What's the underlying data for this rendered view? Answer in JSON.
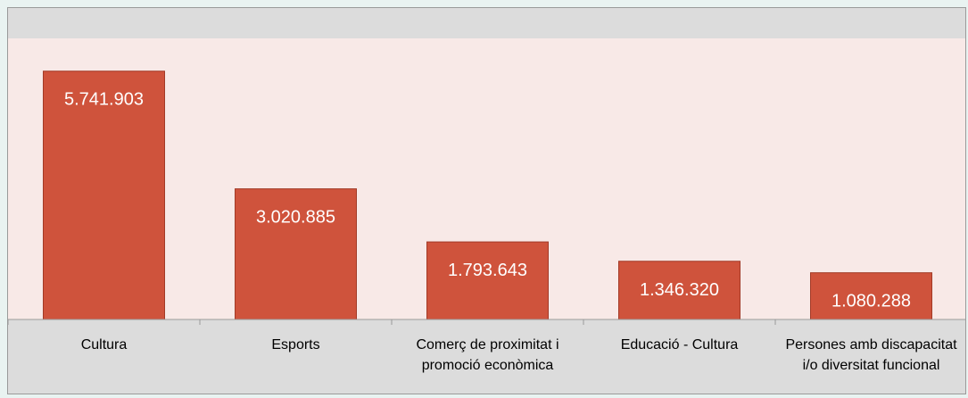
{
  "chart_data": {
    "type": "bar",
    "categories": [
      [
        "Cultura"
      ],
      [
        "Esports"
      ],
      [
        "Comerç de proximitat i",
        "promoció econòmica"
      ],
      [
        "Educació - Cultura"
      ],
      [
        "Persones amb discapacitat",
        "i/o diversitat funcional"
      ]
    ],
    "values": [
      5741903,
      3020885,
      1793643,
      1346320,
      1080288
    ],
    "value_labels": [
      "5.741.903",
      "3.020.885",
      "1.793.643",
      "1.346.320",
      "1.080.288"
    ],
    "title": "",
    "xlabel": "",
    "ylabel": "",
    "ylim": [
      0,
      6500000
    ],
    "grid": false,
    "legend": "none",
    "colors": {
      "bar": "#cf533c",
      "bar_border": "#a23a27",
      "plot_background": "#f8e9e7",
      "chart_background": "#dcdcdc",
      "value_label": "#ffffff",
      "axis": "#9a9a9a"
    }
  }
}
